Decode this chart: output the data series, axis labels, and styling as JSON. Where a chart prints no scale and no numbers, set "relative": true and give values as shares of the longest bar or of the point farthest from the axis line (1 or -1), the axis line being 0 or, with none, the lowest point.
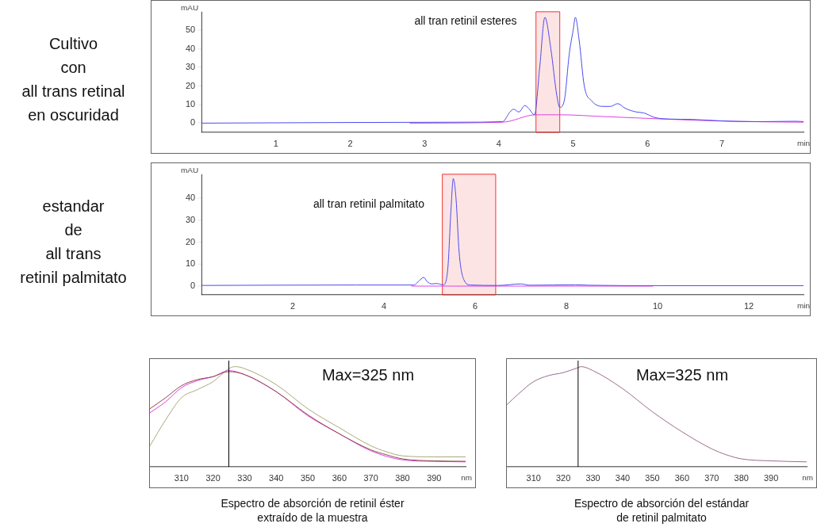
{
  "chart_data": [
    {
      "type": "line",
      "title": "Cultivo\ncon\nall trans retinal\nen oscuridad",
      "xlabel": "min",
      "ylabel": "mAU",
      "xlim": [
        0,
        8.1
      ],
      "ylim": [
        -5,
        60
      ],
      "xticks": [
        1,
        2,
        3,
        4,
        5,
        6,
        7
      ],
      "yticks": [
        0,
        10,
        20,
        30,
        40,
        50
      ],
      "grid": false,
      "legend": false,
      "marker": "none",
      "series": [
        {
          "color": "#4a4aee",
          "x": [
            0,
            3.5,
            4.05,
            4.15,
            4.2,
            4.27,
            4.35,
            4.4,
            4.48,
            4.55,
            4.62,
            4.7,
            4.78,
            4.82,
            4.88,
            4.95,
            5.0,
            5.03,
            5.08,
            5.15,
            5.25,
            5.4,
            5.5,
            5.6,
            5.7,
            5.85,
            5.95,
            6.1,
            6.3,
            6.6,
            7.0,
            7.5,
            8.0,
            8.1
          ],
          "values": [
            0,
            0.5,
            0.8,
            6,
            7.5,
            6,
            9.5,
            8,
            4.5,
            30,
            57,
            40,
            15,
            8.5,
            12,
            38,
            50,
            57,
            45,
            20,
            12,
            9,
            9,
            10.5,
            8,
            6,
            5.5,
            3,
            2.2,
            2,
            1.2,
            0.8,
            1,
            0.8
          ]
        },
        {
          "color": "#e040e0",
          "x": [
            2.8,
            4.05,
            4.5,
            4.82,
            5.43,
            7.1,
            8.1
          ],
          "values": [
            0,
            0.5,
            4.5,
            4.5,
            3.5,
            1,
            0.5
          ]
        }
      ],
      "bands": [
        {
          "axis": "x",
          "from": 4.5,
          "to": 4.82,
          "color": "#ee3333"
        }
      ],
      "annotations": [
        "all tran retinil esteres"
      ]
    },
    {
      "type": "line",
      "title": "estandar\nde\nall trans\nretinil palmitato",
      "xlabel": "min",
      "ylabel": "mAU",
      "xlim": [
        0,
        13.2
      ],
      "ylim": [
        -4,
        51
      ],
      "xticks": [
        2,
        4,
        6,
        8,
        10,
        12
      ],
      "yticks": [
        0,
        10,
        20,
        30,
        40
      ],
      "grid": false,
      "legend": false,
      "marker": "none",
      "series": [
        {
          "color": "#4a4aee",
          "x": [
            0,
            3.4,
            4.65,
            4.8,
            4.87,
            4.95,
            5.05,
            5.15,
            5.3,
            5.4,
            5.47,
            5.52,
            5.58,
            5.65,
            5.75,
            5.9,
            6.5,
            7.0,
            7.2,
            8.2,
            8.5,
            10,
            13.2
          ],
          "values": [
            0.3,
            0.5,
            0.5,
            3,
            4,
            2,
            1,
            1.2,
            0.6,
            8,
            35,
            49,
            40,
            15,
            3,
            0.5,
            0.3,
            1,
            0.4,
            0.6,
            0.4,
            0.2,
            0.2
          ]
        },
        {
          "color": "#e040e0",
          "x": [
            4.6,
            9.9
          ],
          "values": [
            0,
            0
          ]
        }
      ],
      "bands": [
        {
          "axis": "x",
          "from": 5.28,
          "to": 6.45,
          "color": "#ee3333"
        }
      ],
      "annotations": [
        "all tran retinil palmitato"
      ]
    },
    {
      "type": "line",
      "relative": true,
      "title": "Espectro de absorción de retinil éster\nextraído de la muestra",
      "xlabel": "nm",
      "xlim": [
        300,
        400
      ],
      "xticks": [
        310,
        320,
        330,
        340,
        350,
        360,
        370,
        380,
        390
      ],
      "grid": false,
      "legend": false,
      "marker": "none",
      "series": [
        {
          "color": "#8b4a4a",
          "x": [
            300,
            305,
            310,
            315,
            320,
            325,
            330,
            340,
            350,
            360,
            370,
            375,
            380,
            390,
            400
          ],
          "values": [
            0.58,
            0.69,
            0.81,
            0.87,
            0.9,
            0.95,
            0.92,
            0.75,
            0.52,
            0.33,
            0.17,
            0.12,
            0.08,
            0.06,
            0.056
          ]
        },
        {
          "color": "#e040e0",
          "x": [
            300,
            305,
            310,
            315,
            320,
            325,
            330,
            340,
            350,
            360,
            370,
            380,
            390,
            400
          ],
          "values": [
            0.54,
            0.65,
            0.79,
            0.86,
            0.9,
            0.96,
            0.92,
            0.75,
            0.51,
            0.33,
            0.16,
            0.07,
            0.055,
            0.05
          ]
        },
        {
          "color": "#a8a878",
          "x": [
            300,
            305,
            310,
            315,
            320,
            325,
            327,
            330,
            340,
            350,
            360,
            370,
            375,
            380,
            390,
            400
          ],
          "values": [
            0.21,
            0.47,
            0.69,
            0.77,
            0.85,
            0.98,
            1,
            0.98,
            0.82,
            0.58,
            0.39,
            0.21,
            0.15,
            0.11,
            0.1,
            0.1
          ]
        }
      ],
      "ref_lines": [
        {
          "axis": "x",
          "value": 325,
          "color": "#000000"
        }
      ],
      "annotations": [
        "Max=325 nm"
      ]
    },
    {
      "type": "line",
      "relative": true,
      "title": "Espectro de absorción del estándar\nde retinil palmitato",
      "xlabel": "nm",
      "xlim": [
        301,
        402
      ],
      "xticks": [
        310,
        320,
        330,
        340,
        350,
        360,
        370,
        380,
        390
      ],
      "grid": false,
      "legend": false,
      "marker": "none",
      "series": [
        {
          "color": "#9a6a8a",
          "x": [
            301,
            305,
            310,
            315,
            320,
            325,
            326,
            330,
            340,
            350,
            360,
            370,
            375,
            380,
            390,
            402
          ],
          "values": [
            0.62,
            0.73,
            0.85,
            0.91,
            0.94,
            0.99,
            1,
            0.96,
            0.78,
            0.55,
            0.35,
            0.18,
            0.12,
            0.08,
            0.06,
            0.05
          ]
        }
      ],
      "ref_lines": [
        {
          "axis": "x",
          "value": 325,
          "color": "#000000"
        }
      ],
      "annotations": [
        "Max=325 nm"
      ]
    }
  ]
}
